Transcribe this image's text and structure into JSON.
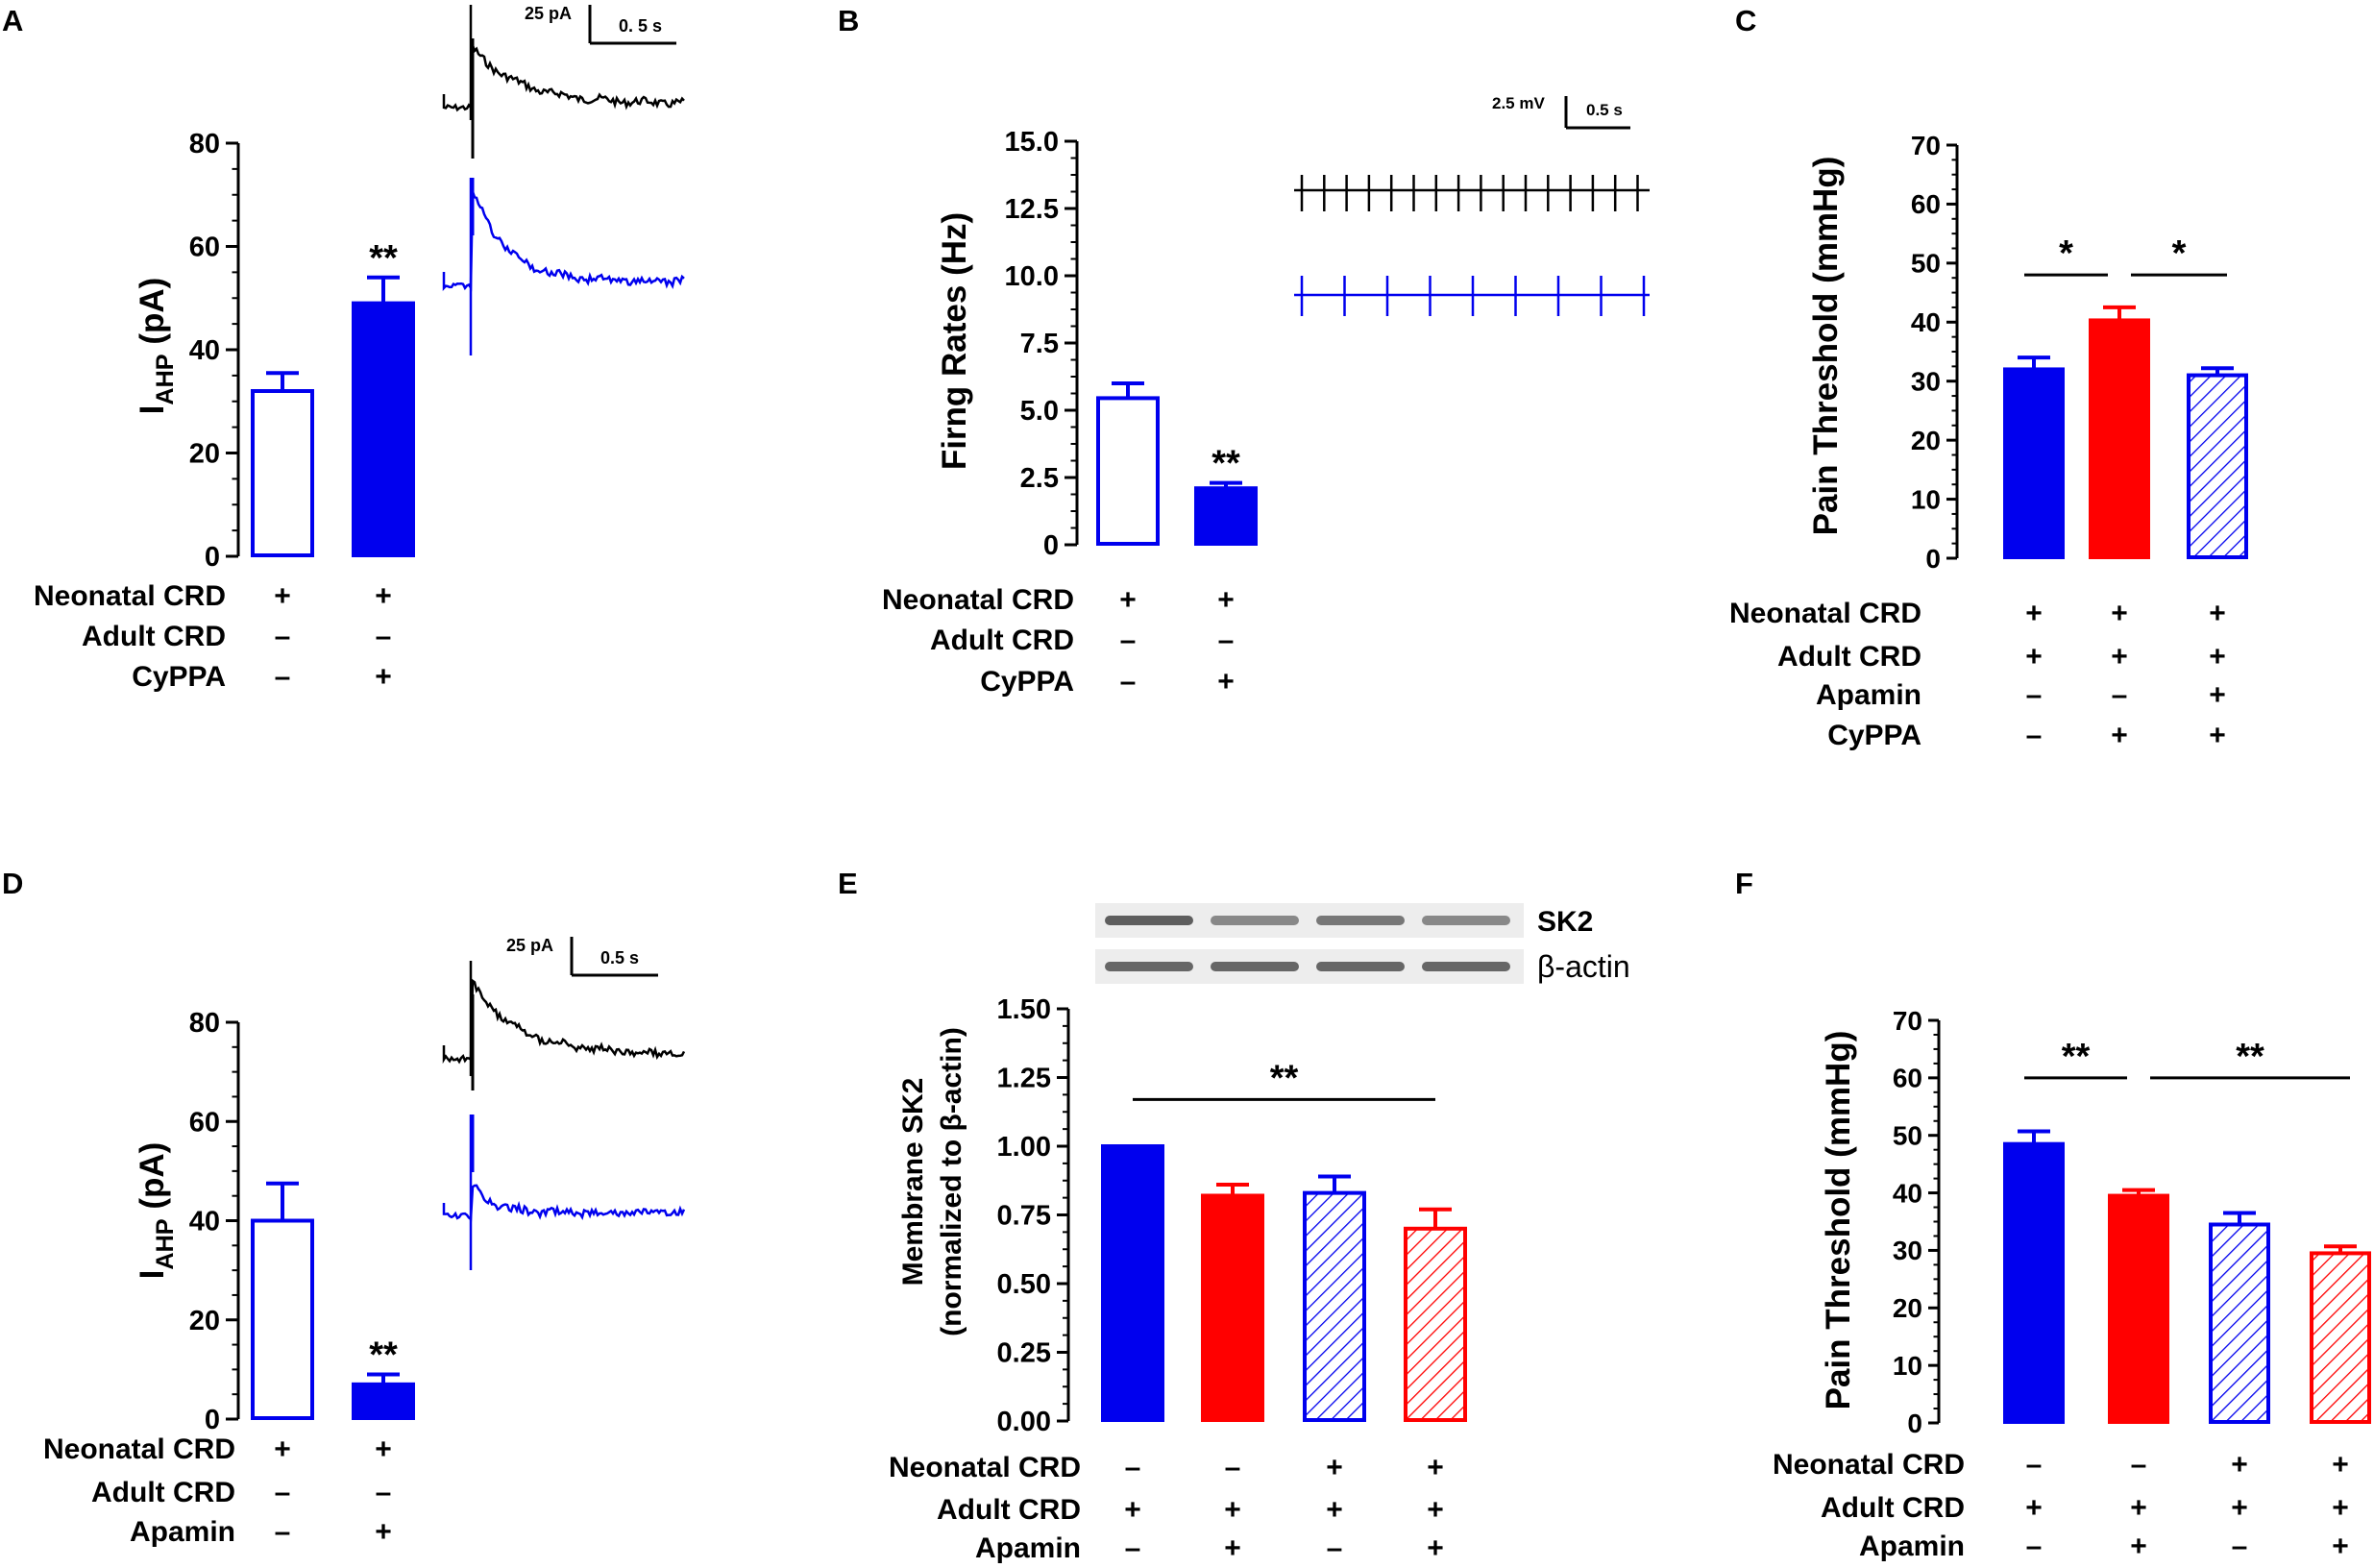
{
  "colors": {
    "blue": "#0000ee",
    "red": "#ff0000",
    "black": "#000000",
    "white": "#ffffff"
  },
  "chart_data": [
    {
      "panel": "A",
      "type": "bar",
      "ylabel_main": "I",
      "ylabel_sub": "AHP",
      "ylabel_unit": " (pA)",
      "ylim": [
        0,
        80
      ],
      "yticks": [
        "0",
        "20",
        "40",
        "60",
        "80"
      ],
      "bars": [
        {
          "value": 32,
          "err": 3.5,
          "fill": "white",
          "color": "blue",
          "sig": ""
        },
        {
          "value": 49,
          "err": 5,
          "fill": "solid",
          "color": "blue",
          "sig": "**"
        }
      ],
      "conditions": [
        {
          "label": "Neonatal CRD",
          "marks": [
            "+",
            "+"
          ]
        },
        {
          "label": "Adult CRD",
          "marks": [
            "–",
            "–"
          ]
        },
        {
          "label": "CyPPA",
          "marks": [
            "–",
            "+"
          ]
        }
      ],
      "scalebar": {
        "amplitude": "25 pA",
        "time": "0. 5 s"
      }
    },
    {
      "panel": "B",
      "type": "bar",
      "ylabel": "Firng Rates (Hz)",
      "ylim": [
        0,
        15
      ],
      "yticks": [
        "0",
        "2.5",
        "5.0",
        "7.5",
        "10.0",
        "12.5",
        "15.0"
      ],
      "bars": [
        {
          "value": 5.45,
          "err": 0.55,
          "fill": "white",
          "color": "blue",
          "sig": ""
        },
        {
          "value": 2.1,
          "err": 0.2,
          "fill": "solid",
          "color": "blue",
          "sig": "**"
        }
      ],
      "conditions": [
        {
          "label": "Neonatal CRD",
          "marks": [
            "+",
            "+"
          ]
        },
        {
          "label": "Adult CRD",
          "marks": [
            "–",
            "–"
          ]
        },
        {
          "label": "CyPPA",
          "marks": [
            "–",
            "+"
          ]
        }
      ],
      "scalebar": {
        "amplitude": "2.5 mV",
        "time": "0.5 s"
      }
    },
    {
      "panel": "C",
      "type": "bar",
      "ylabel": "Pain Threshold (mmHg)",
      "ylim": [
        0,
        70
      ],
      "yticks": [
        "0",
        "10",
        "20",
        "30",
        "40",
        "50",
        "60",
        "70"
      ],
      "bars": [
        {
          "value": 32,
          "err": 2,
          "fill": "solid",
          "color": "blue",
          "sig": ""
        },
        {
          "value": 40.3,
          "err": 2.2,
          "fill": "solid",
          "color": "red",
          "sig": ""
        },
        {
          "value": 31,
          "err": 1.2,
          "fill": "hatch",
          "color": "blue",
          "sig": ""
        }
      ],
      "comparisons": [
        {
          "from": 0,
          "to": 1,
          "label": "*",
          "level": 48
        },
        {
          "from": 1,
          "to": 2,
          "label": "*",
          "level": 48
        }
      ],
      "conditions": [
        {
          "label": "Neonatal CRD",
          "marks": [
            "+",
            "+",
            "+"
          ]
        },
        {
          "label": "Adult CRD",
          "marks": [
            "+",
            "+",
            "+"
          ]
        },
        {
          "label": "Apamin",
          "marks": [
            "–",
            "–",
            "+"
          ]
        },
        {
          "label": "CyPPA",
          "marks": [
            "–",
            "+",
            "+"
          ]
        }
      ]
    },
    {
      "panel": "D",
      "type": "bar",
      "ylabel_main": "I",
      "ylabel_sub": "AHP",
      "ylabel_unit": " (pA)",
      "ylim": [
        0,
        80
      ],
      "yticks": [
        "0",
        "20",
        "40",
        "60",
        "80"
      ],
      "bars": [
        {
          "value": 40,
          "err": 7.5,
          "fill": "white",
          "color": "blue",
          "sig": ""
        },
        {
          "value": 7,
          "err": 2,
          "fill": "solid",
          "color": "blue",
          "sig": "**"
        }
      ],
      "conditions": [
        {
          "label": "Neonatal CRD",
          "marks": [
            "+",
            "+"
          ]
        },
        {
          "label": "Adult CRD",
          "marks": [
            "–",
            "–"
          ]
        },
        {
          "label": "Apamin",
          "marks": [
            "–",
            "+"
          ]
        }
      ],
      "scalebar": {
        "amplitude": "25 pA",
        "time": "0.5 s"
      }
    },
    {
      "panel": "E",
      "type": "bar",
      "ylabel_line1": "Membrane SK2",
      "ylabel_line2": "(normalized to β-actin)",
      "ylim": [
        0,
        1.5
      ],
      "yticks": [
        "0.00",
        "0.25",
        "0.50",
        "0.75",
        "1.00",
        "1.25",
        "1.50"
      ],
      "bars": [
        {
          "value": 1.0,
          "err": 0,
          "fill": "solid",
          "color": "blue",
          "sig": ""
        },
        {
          "value": 0.82,
          "err": 0.04,
          "fill": "solid",
          "color": "red",
          "sig": ""
        },
        {
          "value": 0.83,
          "err": 0.06,
          "fill": "hatch",
          "color": "blue",
          "sig": ""
        },
        {
          "value": 0.7,
          "err": 0.07,
          "fill": "hatch",
          "color": "red",
          "sig": ""
        }
      ],
      "comparisons": [
        {
          "from": 0,
          "to": 3,
          "label": "**",
          "level": 1.17
        }
      ],
      "conditions": [
        {
          "label": "Neonatal CRD",
          "marks": [
            "–",
            "–",
            "+",
            "+"
          ]
        },
        {
          "label": "Adult CRD",
          "marks": [
            "+",
            "+",
            "+",
            "+"
          ]
        },
        {
          "label": "Apamin",
          "marks": [
            "–",
            "+",
            "–",
            "+"
          ]
        }
      ],
      "blot_labels": [
        "SK2",
        "β-actin"
      ]
    },
    {
      "panel": "F",
      "type": "bar",
      "ylabel": "Pain Threshold (mmHg)",
      "ylim": [
        0,
        70
      ],
      "yticks": [
        "0",
        "10",
        "20",
        "30",
        "40",
        "50",
        "60",
        "70"
      ],
      "bars": [
        {
          "value": 48.5,
          "err": 2.2,
          "fill": "solid",
          "color": "blue",
          "sig": ""
        },
        {
          "value": 39.5,
          "err": 1,
          "fill": "solid",
          "color": "red",
          "sig": ""
        },
        {
          "value": 34.5,
          "err": 2,
          "fill": "hatch",
          "color": "blue",
          "sig": ""
        },
        {
          "value": 29.5,
          "err": 1.2,
          "fill": "hatch",
          "color": "red",
          "sig": ""
        }
      ],
      "comparisons": [
        {
          "from": 0,
          "to": 1,
          "label": "**",
          "level": 60
        },
        {
          "from": 1,
          "to": 3,
          "label": "**",
          "level": 60
        }
      ],
      "conditions": [
        {
          "label": "Neonatal CRD",
          "marks": [
            "–",
            "–",
            "+",
            "+"
          ]
        },
        {
          "label": "Adult CRD",
          "marks": [
            "+",
            "+",
            "+",
            "+"
          ]
        },
        {
          "label": "Apamin",
          "marks": [
            "–",
            "+",
            "–",
            "+"
          ]
        }
      ]
    }
  ]
}
